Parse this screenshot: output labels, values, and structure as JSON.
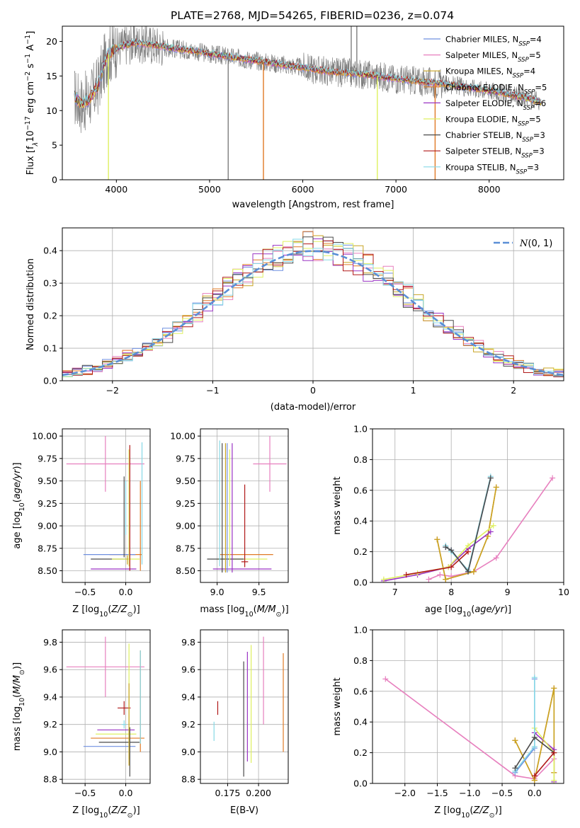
{
  "figure": {
    "title": "PLATE=2768, MJD=54265, FIBERID=0236, z=0.074"
  },
  "colors": {
    "Chabrier MILES": "#6f8fe0",
    "Salpeter MILES": "#e77fbe",
    "Kroupa MILES": "#c8a422",
    "Chabrier ELODIE": "#e07a26",
    "Salpeter ELODIE": "#9a33c4",
    "Kroupa ELODIE": "#dff060",
    "Chabrier STELIB": "#4a4a4a",
    "Salpeter STELIB": "#b01818",
    "Kroupa STELIB": "#86d8e6",
    "data": "#7f7f7f",
    "normal": "#5b8fd6"
  },
  "chart_data": [
    {
      "id": "spectrum",
      "type": "line",
      "xlabel": "wavelength [Angstrom, rest frame]",
      "ylabel": "Flux [f_λ 10^-17 erg cm^-2 s^-1 A^-1]",
      "xlim": [
        3420,
        8800
      ],
      "ylim": [
        0,
        22.2
      ],
      "xticks": [
        4000,
        5000,
        6000,
        7000,
        8000
      ],
      "yticks": [
        0,
        5,
        10,
        15,
        20
      ],
      "grid": false,
      "legend_position": "top-right",
      "legend": [
        {
          "name": "Chabrier MILES",
          "nssp": "4"
        },
        {
          "name": "Salpeter MILES",
          "nssp": "5"
        },
        {
          "name": "Kroupa MILES",
          "nssp": "4"
        },
        {
          "name": "Chabrier ELODIE",
          "nssp": "5"
        },
        {
          "name": "Salpeter ELODIE",
          "nssp": "6"
        },
        {
          "name": "Kroupa ELODIE",
          "nssp": "5"
        },
        {
          "name": "Chabrier STELIB",
          "nssp": "3"
        },
        {
          "name": "Salpeter STELIB",
          "nssp": "3"
        },
        {
          "name": "Kroupa STELIB",
          "nssp": "3"
        }
      ],
      "continuum": {
        "x": [
          3550,
          3620,
          3700,
          3800,
          3900,
          4000,
          4100,
          4200,
          4400,
          4600,
          4800,
          5000,
          5200,
          5400,
          5600,
          5800,
          6000,
          6200,
          6400,
          6600,
          6800,
          7000,
          7200,
          7400,
          7600,
          7800,
          8000,
          8200,
          8400,
          8550
        ],
        "y": [
          12.0,
          11.0,
          11.5,
          13.5,
          18.0,
          19.0,
          19.5,
          19.8,
          19.5,
          19.0,
          18.7,
          18.2,
          17.8,
          17.4,
          17.0,
          16.6,
          16.2,
          15.8,
          15.5,
          15.3,
          15.0,
          14.6,
          14.3,
          14.0,
          13.7,
          13.3,
          12.9,
          12.4,
          11.8,
          11.2
        ]
      },
      "spikes": [
        {
          "x": 3915,
          "y": 0,
          "color": "#dff060"
        },
        {
          "x": 5200,
          "y": 0,
          "color": "#7f7f7f"
        },
        {
          "x": 5578,
          "y": 0,
          "color": "#e07a26"
        },
        {
          "x": 6800,
          "y": 0,
          "color": "#dff060"
        },
        {
          "x": 6520,
          "y": 22.2,
          "color": "#7f7f7f"
        },
        {
          "x": 6580,
          "y": 22.2,
          "color": "#7f7f7f"
        },
        {
          "x": 7420,
          "y": 0,
          "color": "#e07a26"
        }
      ]
    },
    {
      "id": "residuals",
      "type": "histogram",
      "xlabel": "(data-model)/error",
      "ylabel": "Normed distribution",
      "xlim": [
        -2.5,
        2.5
      ],
      "ylim": [
        0,
        0.47
      ],
      "xticks": [
        -2,
        -1,
        0,
        1,
        2
      ],
      "yticks": [
        0.0,
        0.1,
        0.2,
        0.3,
        0.4
      ],
      "grid": true,
      "legend_position": "top-right",
      "normal_label": "N(0, 1)",
      "bin_width": 0.1
    },
    {
      "id": "age-vs-Z",
      "type": "errorbar",
      "xlabel": "Z [log10(Z/Z_sun)]",
      "ylabel": "age  [log10(age/yr)]",
      "xlim": [
        -0.78,
        0.3
      ],
      "ylim": [
        8.37,
        10.08
      ],
      "xticks": [
        -0.5,
        0.0
      ],
      "yticks": [
        8.5,
        8.75,
        9.0,
        9.25,
        9.5,
        9.75,
        10.0
      ],
      "grid": true,
      "points": [
        {
          "model": "Salpeter MILES",
          "x": -0.25,
          "y": 9.69,
          "xerr": 0.48,
          "yerr": 0.31
        },
        {
          "model": "Chabrier ELODIE",
          "x": 0.0,
          "y": 8.68,
          "xerr": 0.2,
          "yerr": 0.0
        },
        {
          "model": "Chabrier ELODIE",
          "x": 0.18,
          "y": 9.0,
          "xerr": 0.0,
          "yerr": 0.5
        },
        {
          "model": "Chabrier MILES",
          "x": -0.2,
          "y": 8.68,
          "xerr": 0.32,
          "yerr": 0.0
        },
        {
          "model": "Chabrier STELIB",
          "x": -0.2,
          "y": 8.63,
          "xerr": 0.23,
          "yerr": 0.0
        },
        {
          "model": "Kroupa ELODIE",
          "x": 0.0,
          "y": 8.63,
          "xerr": 0.17,
          "yerr": 0.0
        },
        {
          "model": "Salpeter ELODIE",
          "x": -0.15,
          "y": 8.52,
          "xerr": 0.28,
          "yerr": 0.0
        },
        {
          "model": "Kroupa STELIB",
          "x": 0.2,
          "y": 9.25,
          "xerr": 0.0,
          "yerr": 0.68
        },
        {
          "model": "Kroupa STELIB",
          "x": 0.0,
          "y": 9.2,
          "xerr": 0.0,
          "yerr": 0.3
        },
        {
          "model": "Chabrier STELIB",
          "x": -0.02,
          "y": 9.1,
          "xerr": 0.0,
          "yerr": 0.45
        },
        {
          "model": "Kroupa ELODIE",
          "x": 0.04,
          "y": 9.2,
          "xerr": 0.0,
          "yerr": 0.65
        },
        {
          "model": "Salpeter STELIB",
          "x": 0.05,
          "y": 9.2,
          "xerr": 0.0,
          "yerr": 0.7
        },
        {
          "model": "Kroupa MILES",
          "x": 0.02,
          "y": 8.62,
          "xerr": 0.0,
          "yerr": 0.05
        }
      ]
    },
    {
      "id": "age-vs-mass",
      "type": "errorbar",
      "xlabel": "mass [log10(M/M_sun)]",
      "ylabel": "",
      "xlim": [
        8.8,
        9.85
      ],
      "ylim": [
        8.37,
        10.08
      ],
      "xticks": [
        9.0,
        9.5
      ],
      "yticks": [
        8.5,
        8.75,
        9.0,
        9.25,
        9.5,
        9.75,
        10.0
      ],
      "grid": true,
      "points": [
        {
          "model": "Salpeter MILES",
          "x": 9.63,
          "y": 9.69,
          "xerr": 0.2,
          "yerr": 0.31
        },
        {
          "model": "Chabrier ELODIE",
          "x": 9.35,
          "y": 8.68,
          "xerr": 0.32,
          "yerr": 0.0
        },
        {
          "model": "Kroupa ELODIE",
          "x": 9.3,
          "y": 8.63,
          "xerr": 0.3,
          "yerr": 0.0
        },
        {
          "model": "Chabrier STELIB",
          "x": 9.1,
          "y": 8.63,
          "xerr": 0.22,
          "yerr": 0.0
        },
        {
          "model": "Salpeter ELODIE",
          "x": 9.3,
          "y": 8.52,
          "xerr": 0.35,
          "yerr": 0.0
        },
        {
          "model": "Salpeter STELIB",
          "x": 9.33,
          "y": 8.6,
          "xerr": 0.04,
          "yerr": 0.0
        },
        {
          "model": "Salpeter STELIB",
          "x": 9.33,
          "y": 9.0,
          "xerr": 0.0,
          "yerr": 0.46
        },
        {
          "model": "Kroupa STELIB",
          "x": 9.03,
          "y": 9.25,
          "xerr": 0.0,
          "yerr": 0.7
        },
        {
          "model": "Chabrier STELIB",
          "x": 9.06,
          "y": 9.2,
          "xerr": 0.0,
          "yerr": 0.72
        },
        {
          "model": "Kroupa MILES",
          "x": 9.1,
          "y": 9.2,
          "xerr": 0.0,
          "yerr": 0.72
        },
        {
          "model": "Chabrier MILES",
          "x": 9.12,
          "y": 9.2,
          "xerr": 0.0,
          "yerr": 0.72
        },
        {
          "model": "Salpeter ELODIE",
          "x": 9.18,
          "y": 9.2,
          "xerr": 0.0,
          "yerr": 0.72
        },
        {
          "model": "Kroupa ELODIE",
          "x": 9.15,
          "y": 9.2,
          "xerr": 0.0,
          "yerr": 0.65
        }
      ]
    },
    {
      "id": "weight-vs-age",
      "type": "line",
      "xlabel": "age  [log10(age/yr)]",
      "ylabel": "mass weight",
      "xlim": [
        6.6,
        10.0
      ],
      "ylim": [
        0,
        1.0
      ],
      "xticks": [
        7,
        8,
        9,
        10
      ],
      "yticks": [
        0.0,
        0.2,
        0.4,
        0.6,
        0.8,
        1.0
      ],
      "grid": true,
      "series": [
        {
          "model": "Salpeter MILES",
          "x": [
            7.6,
            7.8,
            8.0,
            8.4,
            8.8,
            9.8
          ],
          "y": [
            0.02,
            0.05,
            0.04,
            0.07,
            0.16,
            0.68
          ]
        },
        {
          "model": "Chabrier ELODIE",
          "x": [
            7.75,
            7.9,
            8.4,
            8.65,
            8.8
          ],
          "y": [
            0.28,
            0.02,
            0.07,
            0.3,
            0.62
          ]
        },
        {
          "model": "Kroupa MILES",
          "x": [
            7.75,
            7.9,
            8.4,
            8.65,
            8.8
          ],
          "y": [
            0.28,
            0.02,
            0.07,
            0.3,
            0.62
          ]
        },
        {
          "model": "Salpeter ELODIE",
          "x": [
            6.8,
            7.4,
            7.95,
            8.3,
            8.7
          ],
          "y": [
            0.01,
            0.05,
            0.1,
            0.22,
            0.33
          ]
        },
        {
          "model": "Kroupa ELODIE",
          "x": [
            6.8,
            7.4,
            7.95,
            8.3,
            8.75
          ],
          "y": [
            0.02,
            0.06,
            0.1,
            0.24,
            0.37
          ]
        },
        {
          "model": "Chabrier MILES",
          "x": [
            7.9,
            8.0,
            8.3,
            8.7
          ],
          "y": [
            0.23,
            0.21,
            0.07,
            0.68
          ]
        },
        {
          "model": "Kroupa STELIB",
          "x": [
            7.9,
            8.0,
            8.3,
            8.7
          ],
          "y": [
            0.24,
            0.2,
            0.08,
            0.69
          ]
        },
        {
          "model": "Chabrier STELIB",
          "x": [
            7.9,
            8.0,
            8.3,
            8.7
          ],
          "y": [
            0.23,
            0.21,
            0.07,
            0.68
          ]
        },
        {
          "model": "Salpeter STELIB",
          "x": [
            7.2,
            8.0,
            8.3
          ],
          "y": [
            0.05,
            0.1,
            0.2
          ]
        }
      ]
    },
    {
      "id": "mass-vs-Z",
      "type": "errorbar",
      "xlabel": "Z [log10(Z/Z_sun)]",
      "ylabel": "mass [log10(M/M_sun)]",
      "xlim": [
        -0.78,
        0.3
      ],
      "ylim": [
        8.77,
        9.89
      ],
      "xticks": [
        -0.5,
        0.0
      ],
      "yticks": [
        8.8,
        9.0,
        9.2,
        9.4,
        9.6,
        9.8
      ],
      "grid": true,
      "points": [
        {
          "model": "Salpeter MILES",
          "x": -0.25,
          "y": 9.62,
          "xerr": 0.48,
          "yerr": 0.22
        },
        {
          "model": "Salpeter STELIB",
          "x": -0.02,
          "y": 9.32,
          "xerr": 0.08,
          "yerr": 0.05
        },
        {
          "model": "Salpeter ELODIE",
          "x": -0.12,
          "y": 9.16,
          "xerr": 0.23,
          "yerr": 0.0
        },
        {
          "model": "Kroupa ELODIE",
          "x": -0.12,
          "y": 9.13,
          "xerr": 0.25,
          "yerr": 0.0
        },
        {
          "model": "Chabrier ELODIE",
          "x": -0.1,
          "y": 9.1,
          "xerr": 0.33,
          "yerr": 0.0
        },
        {
          "model": "Chabrier STELIB",
          "x": -0.08,
          "y": 9.07,
          "xerr": 0.25,
          "yerr": 0.0
        },
        {
          "model": "Chabrier MILES",
          "x": -0.2,
          "y": 9.04,
          "xerr": 0.32,
          "yerr": 0.0
        },
        {
          "model": "Kroupa STELIB",
          "x": -0.02,
          "y": 9.2,
          "xerr": 0.03,
          "yerr": 0.03
        },
        {
          "model": "Chabrier ELODIE",
          "x": 0.18,
          "y": 9.37,
          "xerr": 0.0,
          "yerr": 0.37
        },
        {
          "model": "Kroupa STELIB",
          "x": 0.18,
          "y": 9.4,
          "xerr": 0.0,
          "yerr": 0.34
        },
        {
          "model": "Kroupa ELODIE",
          "x": 0.04,
          "y": 9.37,
          "xerr": 0.0,
          "yerr": 0.42
        },
        {
          "model": "Chabrier STELIB",
          "x": 0.05,
          "y": 9.0,
          "xerr": 0.0,
          "yerr": 0.18
        },
        {
          "model": "Kroupa MILES",
          "x": 0.04,
          "y": 9.2,
          "xerr": 0.0,
          "yerr": 0.3
        }
      ]
    },
    {
      "id": "mass-vs-ebv",
      "type": "errorbar",
      "xlabel": "E(B-V)",
      "ylabel": "",
      "xlim": [
        0.153,
        0.224
      ],
      "ylim": [
        8.77,
        9.89
      ],
      "xticks": [
        0.175,
        0.2
      ],
      "yticks": [
        8.8,
        9.0,
        9.2,
        9.4,
        9.6,
        9.8
      ],
      "grid": true,
      "points": [
        {
          "model": "Kroupa STELIB",
          "x": 0.164,
          "y": 9.15,
          "xerr": 0.0,
          "yerr": 0.07
        },
        {
          "model": "Salpeter STELIB",
          "x": 0.167,
          "y": 9.32,
          "xerr": 0.0,
          "yerr": 0.05
        },
        {
          "model": "Chabrier STELIB",
          "x": 0.188,
          "y": 9.24,
          "xerr": 0.0,
          "yerr": 0.42
        },
        {
          "model": "Salpeter ELODIE",
          "x": 0.191,
          "y": 9.33,
          "xerr": 0.0,
          "yerr": 0.4
        },
        {
          "model": "Kroupa ELODIE",
          "x": 0.194,
          "y": 9.35,
          "xerr": 0.0,
          "yerr": 0.43
        },
        {
          "model": "Salpeter MILES",
          "x": 0.204,
          "y": 9.52,
          "xerr": 0.0,
          "yerr": 0.32
        },
        {
          "model": "Chabrier ELODIE",
          "x": 0.22,
          "y": 9.36,
          "xerr": 0.0,
          "yerr": 0.36
        }
      ]
    },
    {
      "id": "weight-vs-Z",
      "type": "line",
      "xlabel": "Z [log10(Z/Z_sun)]",
      "ylabel": "mass weight",
      "xlim": [
        -2.5,
        0.45
      ],
      "ylim": [
        0,
        1.0
      ],
      "xticks": [
        -2.0,
        -1.5,
        -1.0,
        -0.5,
        0.0
      ],
      "yticks": [
        0.0,
        0.2,
        0.4,
        0.6,
        0.8,
        1.0
      ],
      "grid": true,
      "series": [
        {
          "model": "Salpeter MILES",
          "x": [
            -2.3,
            -0.3,
            0.0,
            0.3
          ],
          "y": [
            0.68,
            0.05,
            0.03,
            0.16
          ]
        },
        {
          "model": "Chabrier ELODIE",
          "x": [
            -0.3,
            0.0,
            0.3,
            0.3
          ],
          "y": [
            0.28,
            0.02,
            0.62,
            0.07
          ]
        },
        {
          "model": "Kroupa MILES",
          "x": [
            -0.3,
            0.0,
            0.3,
            0.3
          ],
          "y": [
            0.28,
            0.02,
            0.62,
            0.07
          ]
        },
        {
          "model": "Salpeter ELODIE",
          "x": [
            0.0,
            0.3,
            0.3
          ],
          "y": [
            0.33,
            0.22,
            0.01
          ]
        },
        {
          "model": "Kroupa ELODIE",
          "x": [
            0.0,
            0.3,
            0.3
          ],
          "y": [
            0.36,
            0.2,
            0.02
          ]
        },
        {
          "model": "Chabrier MILES",
          "x": [
            -0.3,
            0.0,
            0.0
          ],
          "y": [
            0.07,
            0.23,
            0.68
          ]
        },
        {
          "model": "Kroupa STELIB",
          "x": [
            -0.3,
            0.0,
            0.0
          ],
          "y": [
            0.08,
            0.24,
            0.69
          ]
        },
        {
          "model": "Chabrier STELIB",
          "x": [
            -0.3,
            0.0,
            0.3
          ],
          "y": [
            0.1,
            0.3,
            0.2
          ]
        },
        {
          "model": "Salpeter STELIB",
          "x": [
            0.0,
            0.3
          ],
          "y": [
            0.05,
            0.2
          ]
        }
      ]
    }
  ]
}
